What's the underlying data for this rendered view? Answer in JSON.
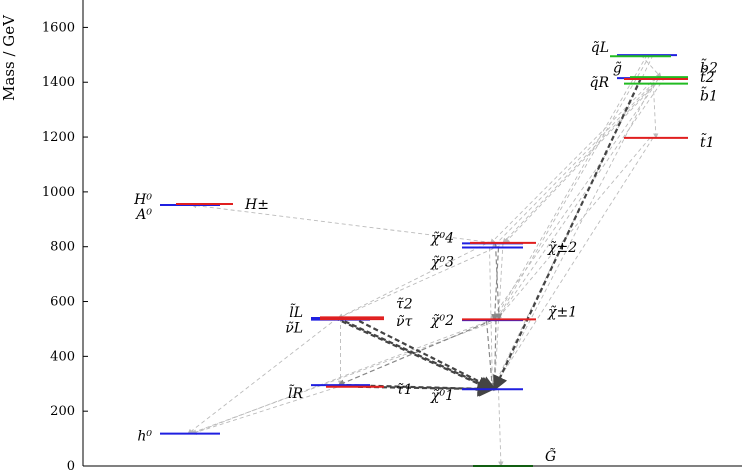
{
  "chart_data": {
    "type": "level-diagram",
    "ylabel": "Mass / GeV",
    "ylim": [
      0,
      1700
    ],
    "yticks": [
      0,
      200,
      400,
      600,
      800,
      1000,
      1200,
      1400,
      1600
    ],
    "colors": {
      "blue": "#1f1fe0",
      "red": "#e01f1f",
      "green": "#22bb22",
      "decay_light": "#bbbbbb",
      "decay_dark": "#444444"
    },
    "levels": [
      {
        "id": "h0",
        "label": "h⁰",
        "mass": 118,
        "column": 0,
        "color": "#1f1fe0",
        "label_side": "left"
      },
      {
        "id": "H0",
        "label": "H⁰",
        "mass": 952,
        "column": 0,
        "color": "#1f1fe0",
        "label_side": "left"
      },
      {
        "id": "A0",
        "label": "A⁰",
        "mass": 952,
        "column": 0,
        "color": "#1f1fe0",
        "label_side": "left"
      },
      {
        "id": "Hpm",
        "label": "H±",
        "mass": 956,
        "column": 0,
        "color": "#e01f1f",
        "label_side": "right"
      },
      {
        "id": "lR",
        "label": "l̃R",
        "mass": 295,
        "column": 1,
        "color": "#1f1fe0",
        "label_side": "left"
      },
      {
        "id": "tau1",
        "label": "τ̃1",
        "mass": 289,
        "column": 1,
        "color": "#e01f1f",
        "label_side": "right"
      },
      {
        "id": "lL",
        "label": "l̃L",
        "mass": 540,
        "column": 1,
        "color": "#1f1fe0",
        "label_side": "left"
      },
      {
        "id": "nuL",
        "label": "ν̃L",
        "mass": 534,
        "column": 1,
        "color": "#1f1fe0",
        "label_side": "left"
      },
      {
        "id": "tau2",
        "label": "τ̃2",
        "mass": 542,
        "column": 1,
        "color": "#e01f1f",
        "label_side": "right"
      },
      {
        "id": "nutau",
        "label": "ν̃τ",
        "mass": 536,
        "column": 1,
        "color": "#e01f1f",
        "label_side": "right"
      },
      {
        "id": "chi10",
        "label": "χ̃⁰1",
        "mass": 280,
        "column": 2,
        "color": "#1f1fe0",
        "label_side": "left"
      },
      {
        "id": "chi20",
        "label": "χ̃⁰2",
        "mass": 532,
        "column": 2,
        "color": "#1f1fe0",
        "label_side": "left"
      },
      {
        "id": "chi1p",
        "label": "χ̃±1",
        "mass": 535,
        "column": 2,
        "color": "#e01f1f",
        "label_side": "right"
      },
      {
        "id": "chi30",
        "label": "χ̃⁰3",
        "mass": 797,
        "column": 2,
        "color": "#1f1fe0",
        "label_side": "left"
      },
      {
        "id": "chi40",
        "label": "χ̃⁰4",
        "mass": 812,
        "column": 2,
        "color": "#1f1fe0",
        "label_side": "left"
      },
      {
        "id": "chi2p",
        "label": "χ̃±2",
        "mass": 814,
        "column": 2,
        "color": "#e01f1f",
        "label_side": "right"
      },
      {
        "id": "G",
        "label": "G̃",
        "mass": 0,
        "column": 2,
        "color": "#22bb22",
        "label_side": "right"
      },
      {
        "id": "qL",
        "label": "q̃L",
        "mass": 1499,
        "column": 3,
        "color": "#1f1fe0",
        "label_side": "left"
      },
      {
        "id": "gluino",
        "label": "g̃",
        "mass": 1418,
        "column": 3,
        "color": "#22bb22",
        "label_side": "left"
      },
      {
        "id": "qR",
        "label": "q̃R",
        "mass": 1415,
        "column": 3,
        "color": "#1f1fe0",
        "label_side": "left"
      },
      {
        "id": "b2",
        "label": "b̃2",
        "mass": 1418,
        "column": 3,
        "color": "#22bb22",
        "label_side": "right"
      },
      {
        "id": "t2",
        "label": "t̃2",
        "mass": 1412,
        "column": 3,
        "color": "#e01f1f",
        "label_side": "right"
      },
      {
        "id": "b1",
        "label": "b̃1",
        "mass": 1395,
        "column": 3,
        "color": "#22bb22",
        "label_side": "right"
      },
      {
        "id": "t1",
        "label": "t̃1",
        "mass": 1197,
        "column": 3,
        "color": "#e01f1f",
        "label_side": "right"
      },
      {
        "id": "qLgreen",
        "label": "",
        "mass": 1495,
        "column": 3,
        "color": "#22bb22",
        "label_side": "none"
      }
    ],
    "decays": [
      {
        "from": "lL",
        "to": "chi10",
        "strength": "strong"
      },
      {
        "from": "lL",
        "to": "chi10",
        "strength": "strong"
      },
      {
        "from": "tau2",
        "to": "chi10",
        "strength": "strong"
      },
      {
        "from": "tau1",
        "to": "chi10",
        "strength": "strong"
      },
      {
        "from": "lR",
        "to": "chi10",
        "strength": "strong"
      },
      {
        "from": "qR",
        "to": "chi10",
        "strength": "strong"
      },
      {
        "from": "chi20",
        "to": "chi10",
        "strength": "medium"
      },
      {
        "from": "chi1p",
        "to": "chi10",
        "strength": "medium"
      },
      {
        "from": "chi20",
        "to": "lR",
        "strength": "medium"
      },
      {
        "from": "chi40",
        "to": "chi1p",
        "strength": "medium"
      },
      {
        "from": "chi30",
        "to": "chi20",
        "strength": "medium"
      },
      {
        "from": "t1",
        "to": "chi1p",
        "strength": "light"
      },
      {
        "from": "t1",
        "to": "chi10",
        "strength": "light"
      },
      {
        "from": "qL",
        "to": "chi20",
        "strength": "light"
      },
      {
        "from": "qL",
        "to": "chi1p",
        "strength": "light"
      },
      {
        "from": "qL",
        "to": "chi10",
        "strength": "light"
      },
      {
        "from": "qL",
        "to": "gluino",
        "strength": "light"
      },
      {
        "from": "gluino",
        "to": "chi40",
        "strength": "light"
      },
      {
        "from": "gluino",
        "to": "chi30",
        "strength": "light"
      },
      {
        "from": "gluino",
        "to": "chi2p",
        "strength": "light"
      },
      {
        "from": "gluino",
        "to": "chi1p",
        "strength": "light"
      },
      {
        "from": "gluino",
        "to": "t1",
        "strength": "light"
      },
      {
        "from": "b2",
        "to": "chi10",
        "strength": "light"
      },
      {
        "from": "b1",
        "to": "chi20",
        "strength": "light"
      },
      {
        "from": "t2",
        "to": "chi2p",
        "strength": "light"
      },
      {
        "from": "chi40",
        "to": "H0",
        "strength": "light"
      },
      {
        "from": "chi40",
        "to": "lL",
        "strength": "light"
      },
      {
        "from": "chi30",
        "to": "chi10",
        "strength": "light"
      },
      {
        "from": "chi2p",
        "to": "chi10",
        "strength": "light"
      },
      {
        "from": "chi2p",
        "to": "lL",
        "strength": "light"
      },
      {
        "from": "chi20",
        "to": "h0",
        "strength": "light"
      },
      {
        "from": "chi1p",
        "to": "h0",
        "strength": "light"
      },
      {
        "from": "lL",
        "to": "h0",
        "strength": "light"
      },
      {
        "from": "lL",
        "to": "lR",
        "strength": "light"
      },
      {
        "from": "lR",
        "to": "h0",
        "strength": "light"
      },
      {
        "from": "chi10",
        "to": "G",
        "strength": "light"
      }
    ]
  }
}
